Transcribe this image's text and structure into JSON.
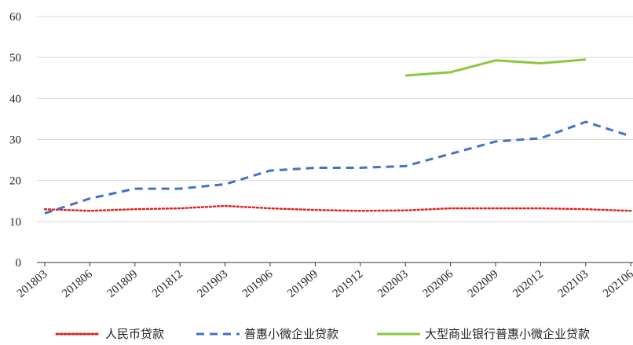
{
  "chart_data": {
    "type": "line",
    "title": "",
    "xlabel": "",
    "ylabel": "",
    "categories": [
      "201803",
      "201806",
      "201809",
      "201812",
      "201903",
      "201906",
      "201909",
      "201912",
      "202003",
      "202006",
      "202009",
      "202012",
      "202103",
      "202106"
    ],
    "ylim": [
      0,
      60
    ],
    "yticks": [
      0,
      10,
      20,
      30,
      40,
      50,
      60
    ],
    "grid": "horizontal",
    "legend_position": "bottom",
    "series": [
      {
        "name": "人民币贷款",
        "style": "dotted",
        "color": "#e3201b",
        "values": [
          13.0,
          12.6,
          13.0,
          13.2,
          13.8,
          13.2,
          12.8,
          12.6,
          12.7,
          13.2,
          13.2,
          13.2,
          13.0,
          12.6
        ]
      },
      {
        "name": "普惠小微企业贷款",
        "style": "dashed",
        "color": "#4472c4",
        "values": [
          12.0,
          15.6,
          18.0,
          18.0,
          19.1,
          22.4,
          23.1,
          23.1,
          23.5,
          26.5,
          29.5,
          30.3,
          34.3,
          30.8
        ]
      },
      {
        "name": "大型商业银行普惠小微企业贷款",
        "style": "solid",
        "color": "#8dc63f",
        "values": [
          null,
          null,
          null,
          null,
          null,
          null,
          null,
          null,
          45.6,
          46.4,
          49.3,
          48.6,
          49.5,
          null
        ]
      }
    ]
  }
}
